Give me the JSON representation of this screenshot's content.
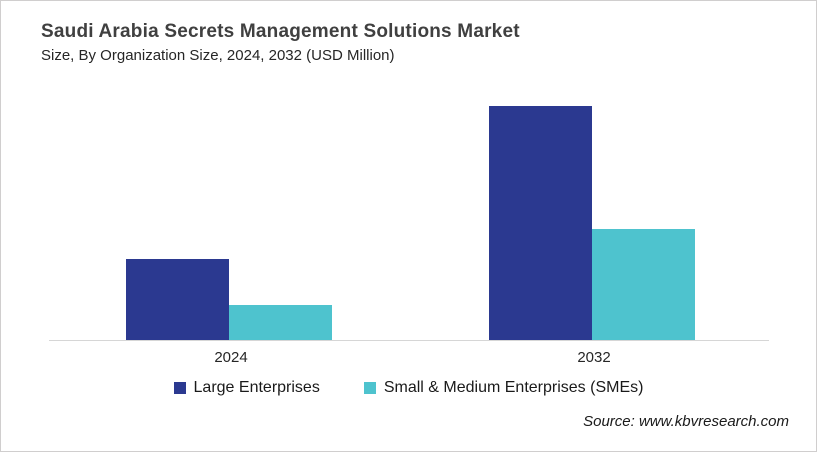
{
  "header": {
    "title": "Saudi Arabia Secrets Management Solutions Market",
    "subtitle": "Size, By Organization Size, 2024, 2032 (USD Million)"
  },
  "chart_data": {
    "type": "bar",
    "title": "Saudi Arabia Secrets Management Solutions Market Size, By Organization Size, 2024, 2032 (USD Million)",
    "categories": [
      "2024",
      "2032"
    ],
    "series": [
      {
        "name": "Large Enterprises",
        "color": "#2B3990",
        "values": [
          81,
          234
        ]
      },
      {
        "name": "Small & Medium Enterprises (SMEs)",
        "color": "#4EC3CE",
        "values": [
          35,
          111
        ]
      }
    ],
    "xlabel": "",
    "ylabel": "",
    "ylim": [
      0,
      250
    ],
    "y_axis_labels_visible": false,
    "gridlines": false,
    "legend_position": "bottom"
  },
  "source": {
    "text": "Source: www.kbvresearch.com"
  },
  "colors": {
    "large_enterprises": "#2B3990",
    "smes": "#4EC3CE",
    "title_text": "#404040",
    "axis_line": "#D6D6D6",
    "frame_border": "#D0CECE"
  }
}
